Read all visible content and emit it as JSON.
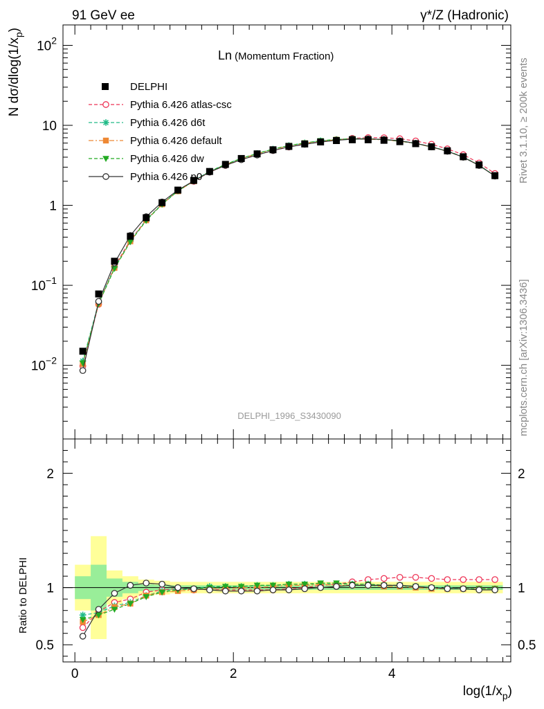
{
  "header": {
    "left_label": "91 GeV ee",
    "right_label": "γ*/Z (Hadronic)",
    "inner_title_main": "Ln",
    "inner_title_sub": "(Momentum Fraction)",
    "analysis_id": "DELPHI_1996_S3430090",
    "side_rivet": "Rivet 3.1.10, ≥ 200k events",
    "side_site": "mcplots.cern.ch [arXiv:1306.3436]"
  },
  "chart_data": [
    {
      "id": "main",
      "type": "scatter",
      "title": "Ln(Momentum Fraction)",
      "xlabel": "log(1/x_p)",
      "ylabel": "N dσ/dlog(1/x_p)",
      "yscale": "log",
      "xlim": [
        -0.15,
        5.5
      ],
      "ylim": [
        0.0012,
        180
      ],
      "ytick_labels": [
        "10^-2",
        "10^-1",
        "1",
        "10",
        "10^2"
      ],
      "legend": [
        {
          "name": "DELPHI",
          "color": "#000000",
          "marker": "square-filled",
          "line": "none"
        },
        {
          "name": "Pythia 6.426 atlas-csc",
          "color": "#ee3355",
          "marker": "circle-open",
          "line": "dashed"
        },
        {
          "name": "Pythia 6.426 d6t",
          "color": "#22bb88",
          "marker": "star",
          "line": "dashed"
        },
        {
          "name": "Pythia 6.426 default",
          "color": "#ee8833",
          "marker": "square-filled",
          "line": "dashdot"
        },
        {
          "name": "Pythia 6.426 dw",
          "color": "#22aa22",
          "marker": "triangle-down",
          "line": "dashed"
        },
        {
          "name": "Pythia 6.426 p0",
          "color": "#333333",
          "marker": "circle-open",
          "line": "solid"
        }
      ],
      "x": [
        0.1,
        0.3,
        0.5,
        0.7,
        0.9,
        1.1,
        1.3,
        1.5,
        1.7,
        1.9,
        2.1,
        2.3,
        2.5,
        2.7,
        2.9,
        3.1,
        3.3,
        3.5,
        3.7,
        3.9,
        4.1,
        4.3,
        4.5,
        4.7,
        4.9,
        5.1,
        5.3
      ],
      "data_values": [
        0.015,
        0.078,
        0.2,
        0.41,
        0.7,
        1.08,
        1.55,
        2.05,
        2.65,
        3.25,
        3.85,
        4.4,
        4.95,
        5.45,
        5.85,
        6.2,
        6.45,
        6.6,
        6.6,
        6.5,
        6.25,
        5.9,
        5.4,
        4.8,
        4.05,
        3.2,
        2.35
      ],
      "series": [
        {
          "name": "Pythia 6.426 atlas-csc",
          "values": [
            0.0098,
            0.058,
            0.172,
            0.365,
            0.66,
            1.04,
            1.52,
            2.0,
            2.6,
            3.15,
            3.74,
            4.28,
            4.84,
            5.36,
            5.82,
            6.25,
            6.62,
            6.88,
            7.02,
            7.0,
            6.8,
            6.38,
            5.8,
            5.08,
            4.3,
            3.38,
            2.5
          ]
        },
        {
          "name": "Pythia 6.426 d6t",
          "values": [
            0.0113,
            0.061,
            0.166,
            0.355,
            0.655,
            1.04,
            1.52,
            2.03,
            2.66,
            3.25,
            3.86,
            4.44,
            5.04,
            5.58,
            6.02,
            6.4,
            6.65,
            6.8,
            6.8,
            6.65,
            6.38,
            5.98,
            5.4,
            4.78,
            4.03,
            3.18,
            2.34
          ]
        },
        {
          "name": "Pythia 6.426 default",
          "values": [
            0.0104,
            0.059,
            0.165,
            0.355,
            0.65,
            1.03,
            1.5,
            2.0,
            2.62,
            3.22,
            3.84,
            4.42,
            5.0,
            5.54,
            5.98,
            6.36,
            6.6,
            6.74,
            6.72,
            6.58,
            6.32,
            5.92,
            5.34,
            4.74,
            4.0,
            3.17,
            2.33
          ]
        },
        {
          "name": "Pythia 6.426 dw",
          "values": [
            0.0107,
            0.059,
            0.162,
            0.35,
            0.645,
            1.03,
            1.51,
            2.02,
            2.65,
            3.25,
            3.87,
            4.45,
            5.05,
            5.6,
            6.03,
            6.42,
            6.66,
            6.8,
            6.78,
            6.62,
            6.35,
            5.95,
            5.37,
            4.75,
            4.01,
            3.17,
            2.33
          ]
        },
        {
          "name": "Pythia 6.426 p0",
          "values": [
            0.0086,
            0.063,
            0.19,
            0.42,
            0.72,
            1.1,
            1.55,
            2.02,
            2.6,
            3.16,
            3.72,
            4.26,
            4.84,
            5.38,
            5.8,
            6.18,
            6.5,
            6.72,
            6.76,
            6.66,
            6.4,
            5.96,
            5.38,
            4.74,
            3.99,
            3.15,
            2.32
          ]
        }
      ]
    },
    {
      "id": "ratio",
      "type": "line",
      "ylabel": "Ratio to DELPHI",
      "xlabel": "log(1/x_p)",
      "xlim": [
        -0.15,
        5.5
      ],
      "ylim": [
        0.35,
        2.3
      ],
      "xtick_labels": [
        "0",
        "2",
        "4"
      ],
      "ytick_labels": [
        "0.5",
        "1",
        "2"
      ],
      "band_inner": [
        0.1,
        0.2,
        0.08,
        0.05,
        0.03,
        0.025,
        0.02,
        0.02,
        0.02,
        0.02,
        0.02,
        0.02,
        0.02,
        0.02,
        0.02,
        0.02,
        0.02,
        0.02,
        0.02,
        0.02,
        0.02,
        0.02,
        0.02,
        0.02,
        0.02,
        0.02,
        0.02
      ],
      "band_outer": [
        0.2,
        0.45,
        0.15,
        0.1,
        0.07,
        0.06,
        0.05,
        0.05,
        0.05,
        0.05,
        0.05,
        0.05,
        0.05,
        0.05,
        0.05,
        0.05,
        0.05,
        0.05,
        0.05,
        0.05,
        0.05,
        0.05,
        0.05,
        0.05,
        0.05,
        0.05,
        0.05
      ],
      "series": [
        {
          "name": "Pythia 6.426 atlas-csc",
          "values": [
            0.65,
            0.79,
            0.87,
            0.9,
            0.96,
            0.98,
            0.99,
            0.98,
            0.99,
            0.98,
            0.98,
            0.98,
            0.98,
            0.99,
            1.0,
            1.02,
            1.03,
            1.05,
            1.07,
            1.08,
            1.09,
            1.09,
            1.08,
            1.07,
            1.07,
            1.07,
            1.07
          ]
        },
        {
          "name": "Pythia 6.426 d6t",
          "values": [
            0.76,
            0.78,
            0.84,
            0.87,
            0.93,
            0.97,
            0.99,
            0.99,
            1.01,
            1.01,
            1.01,
            1.02,
            1.02,
            1.03,
            1.03,
            1.03,
            1.03,
            1.03,
            1.03,
            1.02,
            1.02,
            1.01,
            1.0,
            1.0,
            0.99,
            0.99,
            0.99
          ]
        },
        {
          "name": "Pythia 6.426 default",
          "values": [
            0.7,
            0.76,
            0.83,
            0.86,
            0.93,
            0.96,
            0.97,
            0.98,
            0.99,
            0.99,
            1.0,
            1.0,
            1.01,
            1.02,
            1.02,
            1.03,
            1.02,
            1.02,
            1.02,
            1.01,
            1.01,
            1.0,
            0.99,
            0.99,
            0.99,
            0.99,
            0.99
          ]
        },
        {
          "name": "Pythia 6.426 dw",
          "values": [
            0.72,
            0.76,
            0.81,
            0.86,
            0.92,
            0.96,
            0.98,
            0.99,
            1.0,
            1.01,
            1.01,
            1.02,
            1.02,
            1.03,
            1.03,
            1.04,
            1.04,
            1.03,
            1.03,
            1.02,
            1.02,
            1.01,
            1.0,
            0.99,
            0.99,
            0.99,
            0.99
          ]
        },
        {
          "name": "Pythia 6.426 p0",
          "values": [
            0.575,
            0.81,
            0.95,
            1.02,
            1.04,
            1.03,
            1.0,
            0.99,
            0.98,
            0.97,
            0.97,
            0.97,
            0.98,
            0.98,
            0.99,
            1.0,
            1.01,
            1.02,
            1.02,
            1.02,
            1.02,
            1.01,
            1.0,
            0.99,
            0.99,
            0.98,
            0.98
          ]
        }
      ]
    }
  ]
}
